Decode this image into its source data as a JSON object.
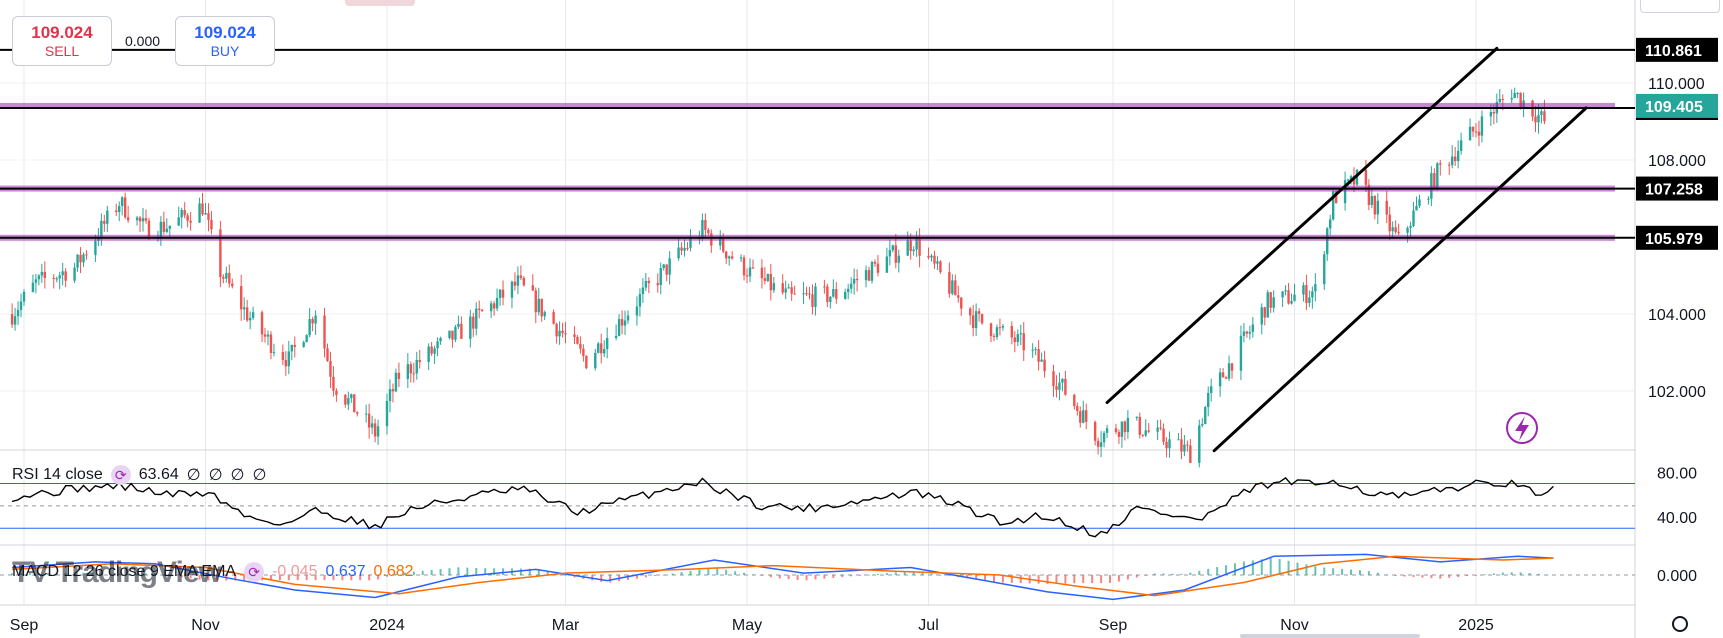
{
  "trading": {
    "sell_price": "109.024",
    "sell_label": "SELL",
    "spread": "0.000",
    "buy_price": "109.024",
    "buy_label": "BUY"
  },
  "colors": {
    "up": "#26a69a",
    "down": "#ef5350",
    "purple_line": "#9c27b0",
    "last_price": "#26a69a",
    "rsi_band": "#2962ff",
    "macd_line": "#2962ff",
    "signal_line": "#ff6d00"
  },
  "chart_data": [
    {
      "type": "candlestick",
      "yaxis": {
        "ticks": [
          110.0,
          108.0,
          104.0,
          102.0
        ],
        "tick_labels": [
          "110.000",
          "108.000",
          "104.000",
          "102.000"
        ],
        "range": [
          100.5,
          111.3
        ]
      },
      "xaxis": {
        "tick_labels": [
          "Sep",
          "Nov",
          "2024",
          "Mar",
          "May",
          "Jul",
          "Sep",
          "Nov",
          "2025"
        ],
        "tick_dates": [
          "2023-09-01",
          "2023-11-01",
          "2024-01-01",
          "2024-03-01",
          "2024-05-01",
          "2024-07-01",
          "2024-09-01",
          "2024-11-01",
          "2025-01-01"
        ]
      },
      "price_path": [
        [
          "2023-08-28",
          104.0
        ],
        [
          "2023-09-05",
          104.8
        ],
        [
          "2023-09-18",
          105.2
        ],
        [
          "2023-10-03",
          106.9
        ],
        [
          "2023-10-12",
          106.2
        ],
        [
          "2023-10-20",
          106.3
        ],
        [
          "2023-10-31",
          106.8
        ],
        [
          "2023-11-06",
          105.1
        ],
        [
          "2023-11-14",
          104.1
        ],
        [
          "2023-11-21",
          103.4
        ],
        [
          "2023-11-29",
          102.8
        ],
        [
          "2023-12-08",
          104.1
        ],
        [
          "2023-12-14",
          102.2
        ],
        [
          "2023-12-28",
          100.9
        ],
        [
          "2024-01-05",
          102.4
        ],
        [
          "2024-01-25",
          103.5
        ],
        [
          "2024-02-14",
          104.8
        ],
        [
          "2024-03-08",
          102.8
        ],
        [
          "2024-03-28",
          104.6
        ],
        [
          "2024-04-16",
          106.2
        ],
        [
          "2024-05-03",
          105.0
        ],
        [
          "2024-05-16",
          104.4
        ],
        [
          "2024-05-31",
          104.5
        ],
        [
          "2024-06-07",
          104.9
        ],
        [
          "2024-06-26",
          105.9
        ],
        [
          "2024-07-16",
          103.9
        ],
        [
          "2024-08-02",
          103.2
        ],
        [
          "2024-08-13",
          102.3
        ],
        [
          "2024-08-27",
          100.8
        ],
        [
          "2024-09-06",
          101.2
        ],
        [
          "2024-09-27",
          100.4
        ],
        [
          "2024-10-03",
          101.8
        ],
        [
          "2024-10-23",
          104.3
        ],
        [
          "2024-11-08",
          104.6
        ],
        [
          "2024-11-14",
          107.0
        ],
        [
          "2024-11-22",
          107.5
        ],
        [
          "2024-12-06",
          105.9
        ],
        [
          "2024-12-20",
          107.8
        ],
        [
          "2025-01-02",
          108.9
        ],
        [
          "2025-01-13",
          109.8
        ],
        [
          "2025-01-24",
          109.0
        ]
      ],
      "horizontal_levels": [
        {
          "value": 110.861,
          "label": "110.861",
          "color": "#000000"
        },
        {
          "value": 109.351,
          "label": "109.351",
          "color": "#000000"
        },
        {
          "value": 107.258,
          "label": "107.258",
          "color": "#000000"
        },
        {
          "value": 105.979,
          "label": "105.979",
          "color": "#000000"
        }
      ],
      "last_price": {
        "value": 109.405,
        "label": "109.405"
      },
      "channel": {
        "upper": [
          [
            "2024-08-30",
            101.7
          ],
          [
            "2025-01-08",
            110.9
          ]
        ],
        "lower": [
          [
            "2024-10-05",
            100.45
          ],
          [
            "2025-02-07",
            109.35
          ]
        ]
      }
    },
    {
      "type": "line",
      "name": "RSI",
      "legend": "RSI 14 close",
      "value": "63.64",
      "extra_values": [
        "∅",
        "∅",
        "∅",
        "∅"
      ],
      "yaxis": {
        "ticks": [
          80,
          40
        ],
        "tick_labels": [
          "80.00",
          "40.00"
        ],
        "bands": [
          70,
          30
        ],
        "range": [
          15,
          100
        ]
      },
      "path": [
        [
          "2023-08-28",
          58
        ],
        [
          "2023-09-20",
          66
        ],
        [
          "2023-10-04",
          68
        ],
        [
          "2023-10-20",
          60
        ],
        [
          "2023-11-02",
          62
        ],
        [
          "2023-11-15",
          40
        ],
        [
          "2023-11-28",
          34
        ],
        [
          "2023-12-08",
          46
        ],
        [
          "2023-12-28",
          32
        ],
        [
          "2024-01-10",
          48
        ],
        [
          "2024-02-01",
          60
        ],
        [
          "2024-02-16",
          65
        ],
        [
          "2024-03-05",
          44
        ],
        [
          "2024-03-22",
          56
        ],
        [
          "2024-04-15",
          72
        ],
        [
          "2024-05-06",
          50
        ],
        [
          "2024-05-22",
          48
        ],
        [
          "2024-06-10",
          55
        ],
        [
          "2024-06-26",
          62
        ],
        [
          "2024-07-10",
          52
        ],
        [
          "2024-07-26",
          34
        ],
        [
          "2024-08-08",
          42
        ],
        [
          "2024-08-28",
          24
        ],
        [
          "2024-09-09",
          48
        ],
        [
          "2024-09-30",
          37
        ],
        [
          "2024-10-18",
          66
        ],
        [
          "2024-10-30",
          72
        ],
        [
          "2024-11-08",
          68
        ],
        [
          "2024-11-14",
          74
        ],
        [
          "2024-11-28",
          60
        ],
        [
          "2024-12-10",
          58
        ],
        [
          "2024-12-25",
          67
        ],
        [
          "2025-01-10",
          72
        ],
        [
          "2025-01-20",
          62
        ],
        [
          "2025-01-27",
          64
        ]
      ]
    },
    {
      "type": "line",
      "name": "MACD",
      "legend": "MACD 12 26 close 9 EMA EMA",
      "values": [
        "-0.045",
        "0.637",
        "0.682"
      ],
      "yaxis": {
        "ticks": [
          0.0
        ],
        "tick_labels": [
          "0.000"
        ],
        "range": [
          -1.6,
          1.6
        ]
      },
      "macd": [
        [
          "2023-08-28",
          0.4
        ],
        [
          "2023-09-25",
          0.7
        ],
        [
          "2023-10-15",
          0.6
        ],
        [
          "2023-11-10",
          -0.2
        ],
        [
          "2023-12-01",
          -0.8
        ],
        [
          "2023-12-28",
          -1.2
        ],
        [
          "2024-01-25",
          -0.1
        ],
        [
          "2024-02-20",
          0.3
        ],
        [
          "2024-03-15",
          -0.3
        ],
        [
          "2024-04-20",
          0.8
        ],
        [
          "2024-05-20",
          0.1
        ],
        [
          "2024-06-25",
          0.4
        ],
        [
          "2024-07-20",
          -0.3
        ],
        [
          "2024-08-10",
          -0.9
        ],
        [
          "2024-09-01",
          -1.3
        ],
        [
          "2024-09-25",
          -0.8
        ],
        [
          "2024-10-25",
          1.0
        ],
        [
          "2024-11-25",
          1.1
        ],
        [
          "2024-12-20",
          0.7
        ],
        [
          "2025-01-15",
          1.0
        ],
        [
          "2025-01-27",
          0.9
        ]
      ],
      "signal": [
        [
          "2023-08-28",
          0.3
        ],
        [
          "2023-10-01",
          0.6
        ],
        [
          "2023-11-01",
          0.4
        ],
        [
          "2023-12-01",
          -0.5
        ],
        [
          "2024-01-05",
          -1.0
        ],
        [
          "2024-02-01",
          -0.4
        ],
        [
          "2024-03-01",
          0.1
        ],
        [
          "2024-04-10",
          0.3
        ],
        [
          "2024-05-10",
          0.5
        ],
        [
          "2024-06-20",
          0.2
        ],
        [
          "2024-07-25",
          0.0
        ],
        [
          "2024-08-20",
          -0.6
        ],
        [
          "2024-09-15",
          -1.1
        ],
        [
          "2024-10-15",
          -0.4
        ],
        [
          "2024-11-10",
          0.6
        ],
        [
          "2024-12-05",
          1.0
        ],
        [
          "2025-01-10",
          0.8
        ],
        [
          "2025-01-27",
          0.9
        ]
      ]
    }
  ]
}
